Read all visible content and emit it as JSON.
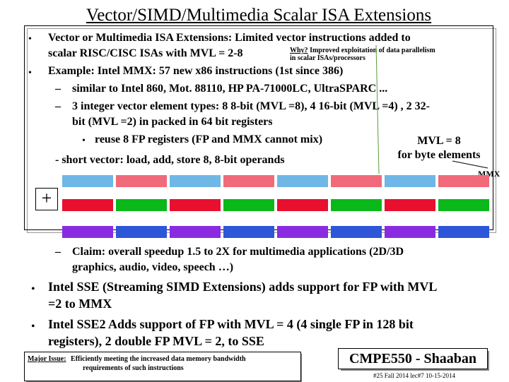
{
  "slide": {
    "title": "Vector/SIMD/Multimedia Scalar ISA Extensions",
    "bullet1": {
      "line1": "Vector or Multimedia ISA Extensions: Limited vector instructions added to",
      "line2": "scalar RISC/CISC ISAs with MVL = 2-8"
    },
    "why_note": {
      "label": "Why?",
      "line1": "Improved exploitation of data parallelism",
      "line2": "in scalar ISAs/processors"
    },
    "bullet2": "Example: Intel MMX: 57 new x86 instructions (1st since 386)",
    "sub1": "similar to Intel 860, Mot. 88110, HP PA-71000LC, UltraSPARC ...",
    "sub2_line1": "3 integer vector element types: 8 8-bit (MVL =8), 4 16-bit (MVL =4) , 2 32-",
    "sub2_line2": "bit (MVL =2) in packed in 64 bit registers",
    "subsub": "reuse 8 FP registers (FP and MMX cannot mix)",
    "short_vector": "- short vector: load, add, store 8, 8-bit operands",
    "mvl_note": {
      "line1": "MVL = 8",
      "line2": "for byte elements"
    },
    "mmx_label": "MMX",
    "plus_symbol": "+",
    "claim_line1": "Claim: overall speedup 1.5 to 2X for multimedia applications (2D/3D",
    "claim_line2": "graphics, audio, video, speech …)",
    "bullet3_line1": "Intel SSE (Streaming SIMD Extensions) adds support for FP with MVL",
    "bullet3_line2": "=2 to MMX",
    "bullet4_line1": "Intel SSE2  Adds support of FP with MVL = 4 (4 single FP in 128 bit",
    "bullet4_line2": "registers), 2 double FP MVL = 2, to SSE",
    "bullet_glyph": "•",
    "dash_glyph": "–"
  },
  "footer": {
    "issue_label": "Major Issue:",
    "issue_line1": "Efficiently meeting the increased data memory bandwidth",
    "issue_line2": "requirements of such instructions",
    "brand": "CMPE550 - Shaaban",
    "meta": "#25  Fall 2014  lec#7  10-15-2014"
  },
  "colors": {
    "lane_top": "#6fb7e6",
    "lane_pink": "#f06a7a",
    "lane_red": "#e8102e",
    "lane_green": "#0ab81a",
    "lane_purple": "#8a2be2",
    "lane_blue": "#2e56d8",
    "pointer": "#5a9a3a"
  }
}
